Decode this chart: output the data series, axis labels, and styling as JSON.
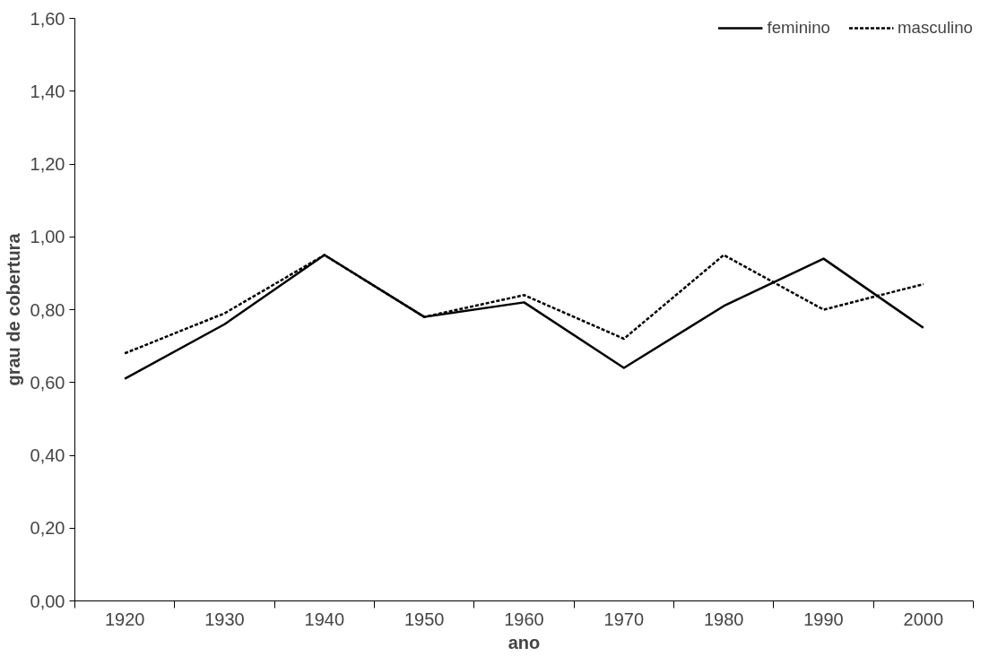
{
  "chart_data": {
    "type": "line",
    "xlabel": "ano",
    "ylabel": "grau de cobertura",
    "categories": [
      "1920",
      "1930",
      "1940",
      "1950",
      "1960",
      "1970",
      "1980",
      "1990",
      "2000"
    ],
    "series": [
      {
        "name": "feminino",
        "color": "#000000",
        "line_style": "solid",
        "values": [
          0.61,
          0.76,
          0.95,
          0.78,
          0.82,
          0.64,
          0.81,
          0.94,
          0.75
        ]
      },
      {
        "name": "masculino",
        "color": "#000000",
        "line_style": "dashed",
        "values": [
          0.68,
          0.79,
          0.95,
          0.78,
          0.84,
          0.72,
          0.95,
          0.8,
          0.87
        ]
      }
    ],
    "ylim": [
      0,
      1.6
    ],
    "yticks": [
      {
        "value": 0,
        "label": "0,00"
      },
      {
        "value": 0.2,
        "label": "0,20"
      },
      {
        "value": 0.4,
        "label": "0,40"
      },
      {
        "value": 0.6,
        "label": "0,60"
      },
      {
        "value": 0.8,
        "label": "0,80"
      },
      {
        "value": 1.0,
        "label": "1,00"
      },
      {
        "value": 1.2,
        "label": "1,20"
      },
      {
        "value": 1.4,
        "label": "1,40"
      },
      {
        "value": 1.6,
        "label": "1,60"
      }
    ],
    "grid": false,
    "legend": "top right",
    "marker": "none"
  }
}
